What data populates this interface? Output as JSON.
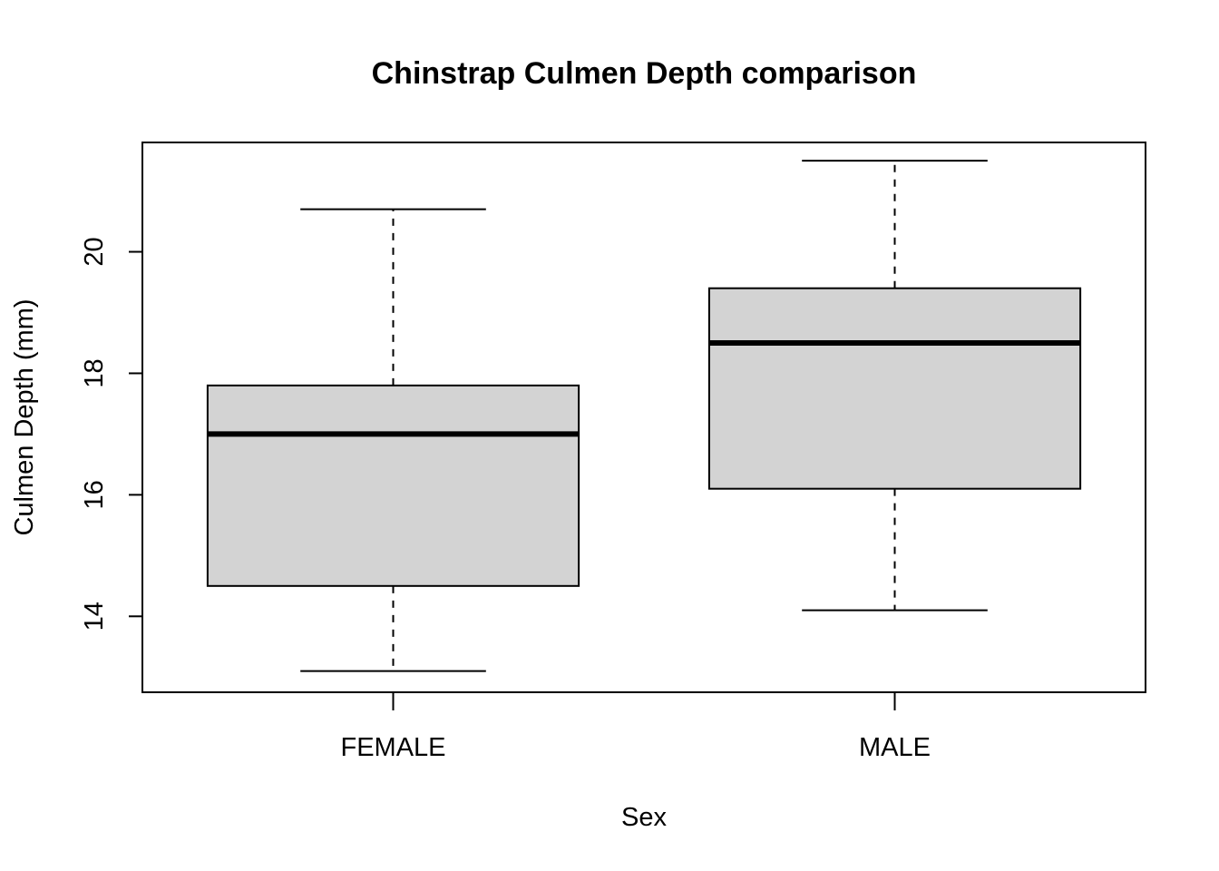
{
  "chart_data": {
    "type": "boxplot",
    "title": "Chinstrap Culmen Depth comparison",
    "xlabel": "Sex",
    "ylabel": "Culmen Depth (mm)",
    "categories": [
      "FEMALE",
      "MALE"
    ],
    "boxes": [
      {
        "category": "FEMALE",
        "whisker_low": 13.1,
        "q1": 14.5,
        "median": 17.0,
        "q3": 17.8,
        "whisker_high": 20.7
      },
      {
        "category": "MALE",
        "whisker_low": 14.1,
        "q1": 16.1,
        "median": 18.5,
        "q3": 19.4,
        "whisker_high": 21.5
      }
    ],
    "ylim": [
      12.75,
      21.8
    ],
    "yticks": [
      "14",
      "16",
      "18",
      "20"
    ],
    "grid": false,
    "colors": {
      "box_fill": "#d3d3d3",
      "stroke": "#000000"
    }
  }
}
